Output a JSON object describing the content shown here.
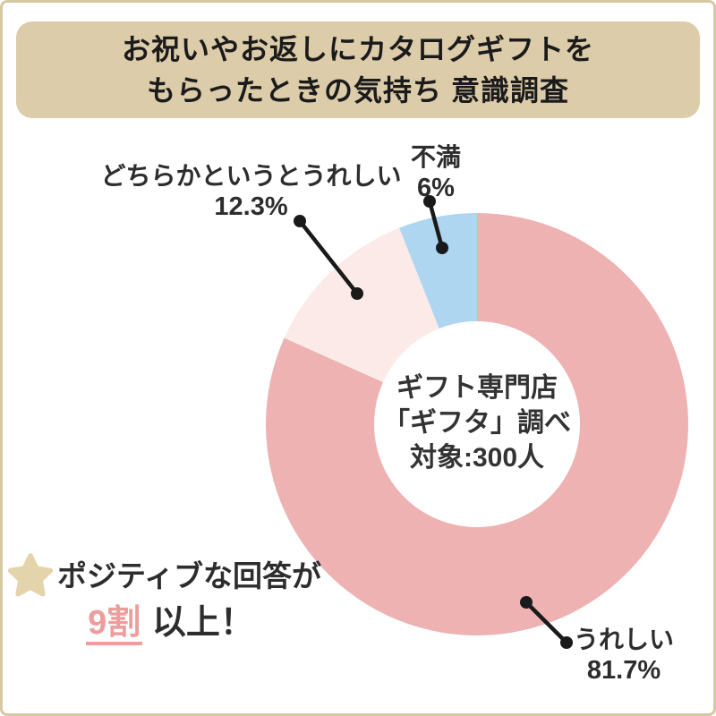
{
  "title": {
    "line1": "お祝いやお返しにカタログギフトを",
    "line2": "もらったときの気持ち 意識調査"
  },
  "chart_data": {
    "type": "pie",
    "variant": "donut",
    "title": "お祝いやお返しにカタログギフトをもらったときの気持ち 意識調査",
    "categories": [
      "うれしい",
      "どちらかというとうれしい",
      "不満"
    ],
    "values": [
      81.7,
      12.3,
      6
    ],
    "unit": "%",
    "colors": [
      "#efb2b3",
      "#fceae9",
      "#afd6f0"
    ],
    "start_angle_deg": 0,
    "direction": "clockwise",
    "legend_position": "none",
    "center_note": [
      "ギフト専門店",
      "「ギフタ」調べ",
      "対象:300人"
    ]
  },
  "slice_labels": [
    {
      "name": "うれしい",
      "pct": "81.7%"
    },
    {
      "name": "どちらかというとうれしい",
      "pct": "12.3%"
    },
    {
      "name": "不満",
      "pct": "6%"
    }
  ],
  "annotation": {
    "prefix": "ポジティブな回答が",
    "highlight": "9割",
    "suffix": "以上！"
  },
  "colors": {
    "frame": "#d6c8a3",
    "banner_bg": "#dccca9",
    "banner_text": "#1b1b1b",
    "dark_text": "#2d2d2d",
    "accent_pink": "#ee9d9d",
    "star": "#e4d4ab",
    "leader_line": "#1a1a1a"
  }
}
